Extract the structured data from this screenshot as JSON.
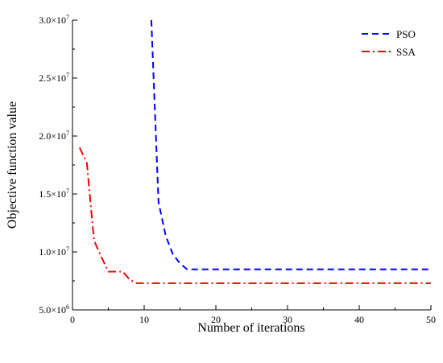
{
  "chart_data": {
    "type": "line",
    "title": "",
    "xlabel": "Number of iterations",
    "ylabel": "Objective function value",
    "xlim": [
      0,
      50
    ],
    "ylim": [
      5000000,
      30000000
    ],
    "x_ticks": [
      0,
      10,
      20,
      30,
      40,
      50
    ],
    "x_tick_labels": [
      "0",
      "10",
      "20",
      "30",
      "40",
      "50"
    ],
    "y_ticks": [
      5000000,
      10000000,
      15000000,
      20000000,
      25000000,
      30000000
    ],
    "y_tick_mantissas": [
      "5.0×10",
      "1.0×10",
      "1.5×10",
      "2.0×10",
      "2.5×10",
      "3.0×10"
    ],
    "y_tick_exponents": [
      "6",
      "7",
      "7",
      "7",
      "7",
      "7"
    ],
    "grid": false,
    "legend_position": "top-right",
    "series": [
      {
        "name": "PSO",
        "color": "#0000ff",
        "style": "dash",
        "x": [
          11,
          12,
          13,
          14,
          15,
          16,
          20,
          25,
          30,
          35,
          40,
          45,
          50
        ],
        "y": [
          30000000,
          14300000,
          11400000,
          9800000,
          9000000,
          8500000,
          8500000,
          8500000,
          8500000,
          8500000,
          8500000,
          8500000,
          8500000
        ]
      },
      {
        "name": "SSA",
        "color": "#ff0000",
        "style": "dash-dot",
        "x": [
          1,
          2,
          3,
          4,
          5,
          6,
          7,
          8,
          9,
          10,
          20,
          30,
          40,
          50
        ],
        "y": [
          19000000,
          17700000,
          11000000,
          9600000,
          8300000,
          8300000,
          8300000,
          7600000,
          7300000,
          7300000,
          7300000,
          7300000,
          7300000,
          7300000
        ]
      }
    ]
  }
}
